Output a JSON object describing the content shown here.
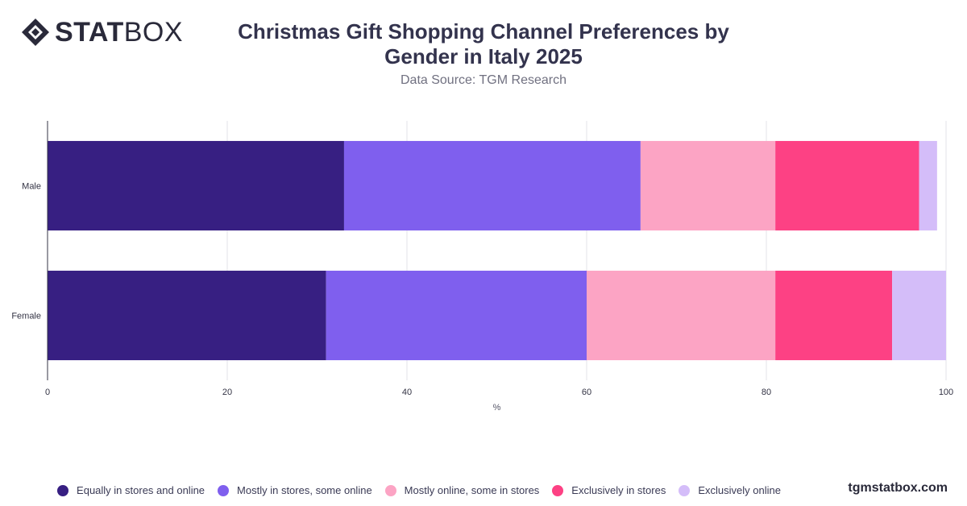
{
  "brand": {
    "logo_word_bold": "STAT",
    "logo_word_light": "BOX",
    "watermark": "tgmstatbox.com"
  },
  "header": {
    "title_line1": "Christmas Gift Shopping Channel Preferences by",
    "title_line2": "Gender in Italy 2025",
    "subtitle": "Data Source: TGM Research"
  },
  "chart_data": {
    "type": "bar",
    "orientation": "horizontal",
    "stacked": true,
    "title": "Christmas Gift Shopping Channel Preferences by Gender in Italy 2025",
    "subtitle": "Data Source: TGM Research",
    "categories": [
      "Male",
      "Female"
    ],
    "xlabel": "%",
    "ylabel": "",
    "xlim": [
      0,
      100
    ],
    "xticks": [
      "0",
      "20",
      "40",
      "60",
      "80",
      "100"
    ],
    "grid": true,
    "legend_position": "bottom",
    "series": [
      {
        "name": "Equally in stores and online",
        "color": "#371f82",
        "values": [
          33,
          31
        ]
      },
      {
        "name": "Mostly in stores, some online",
        "color": "#7f5fee",
        "values": [
          33,
          29
        ]
      },
      {
        "name": "Mostly online, some in stores",
        "color": "#fca4c4",
        "values": [
          15,
          21
        ]
      },
      {
        "name": "Exclusively in stores",
        "color": "#fd4184",
        "values": [
          16,
          13
        ]
      },
      {
        "name": "Exclusively online",
        "color": "#d4bdf9",
        "values": [
          2,
          6
        ]
      }
    ]
  }
}
